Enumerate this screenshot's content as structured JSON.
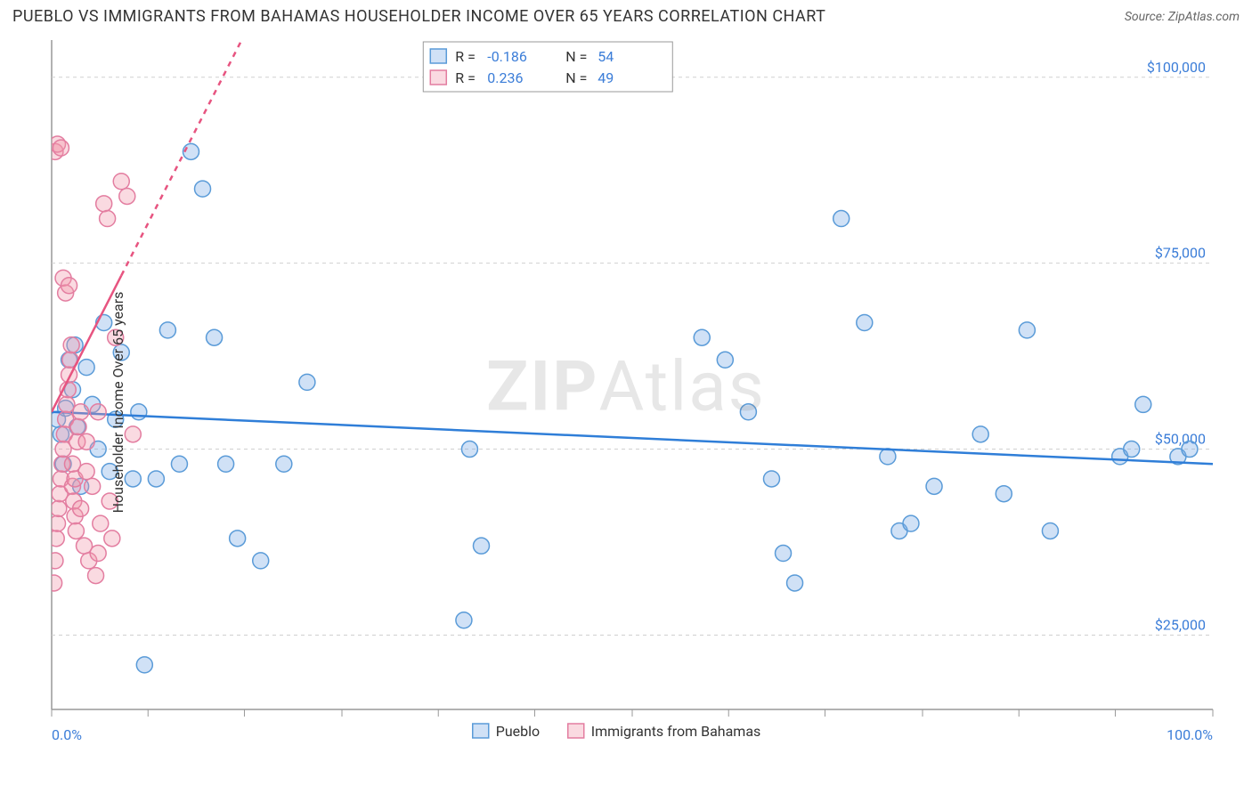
{
  "header": {
    "title": "PUEBLO VS IMMIGRANTS FROM BAHAMAS HOUSEHOLDER INCOME OVER 65 YEARS CORRELATION CHART",
    "source": "Source: ZipAtlas.com"
  },
  "watermark": {
    "part1": "ZIP",
    "part2": "Atlas"
  },
  "chart": {
    "type": "scatter",
    "ylabel": "Householder Income Over 65 years",
    "xlim": [
      0,
      100
    ],
    "ylim": [
      15000,
      105000
    ],
    "x_axis": {
      "min_label": "0.0%",
      "max_label": "100.0%",
      "label_color": "#3b7dd8",
      "tick_positions": [
        0,
        8.3,
        16.6,
        25,
        33.3,
        41.6,
        50,
        58.3,
        66.6,
        75,
        83.3,
        91.6,
        100
      ]
    },
    "y_axis": {
      "gridlines": [
        {
          "value": 25000,
          "label": "$25,000"
        },
        {
          "value": 50000,
          "label": "$50,000"
        },
        {
          "value": 75000,
          "label": "$75,000"
        },
        {
          "value": 100000,
          "label": "$100,000"
        }
      ],
      "label_color": "#3b7dd8",
      "grid_color": "#d0d0d0"
    },
    "background_color": "#ffffff",
    "border_color": "#999999",
    "marker_radius": 9,
    "marker_stroke_width": 1.5,
    "series": [
      {
        "name": "Pueblo",
        "fill": "rgba(120,170,230,0.35)",
        "stroke": "#5a9bd8",
        "R": "-0.186",
        "N": "54",
        "trend": {
          "x1": 0,
          "y1": 55000,
          "x2": 100,
          "y2": 48000,
          "color": "#2f7ed8",
          "width": 2.5,
          "dash_after_x": null
        },
        "points": [
          [
            0.5,
            54000
          ],
          [
            0.8,
            52000
          ],
          [
            1.0,
            48000
          ],
          [
            1.2,
            55500
          ],
          [
            1.5,
            62000
          ],
          [
            1.8,
            58000
          ],
          [
            2.0,
            64000
          ],
          [
            2.2,
            53000
          ],
          [
            2.5,
            45000
          ],
          [
            3.0,
            61000
          ],
          [
            3.5,
            56000
          ],
          [
            4.0,
            50000
          ],
          [
            4.5,
            67000
          ],
          [
            5.0,
            47000
          ],
          [
            5.5,
            54000
          ],
          [
            6.0,
            63000
          ],
          [
            7.0,
            46000
          ],
          [
            7.5,
            55000
          ],
          [
            8.0,
            21000
          ],
          [
            9.0,
            46000
          ],
          [
            10.0,
            66000
          ],
          [
            11.0,
            48000
          ],
          [
            12.0,
            90000
          ],
          [
            13.0,
            85000
          ],
          [
            14.0,
            65000
          ],
          [
            15.0,
            48000
          ],
          [
            16.0,
            38000
          ],
          [
            18.0,
            35000
          ],
          [
            20.0,
            48000
          ],
          [
            22.0,
            59000
          ],
          [
            35.5,
            27000
          ],
          [
            36.0,
            50000
          ],
          [
            37.0,
            37000
          ],
          [
            56.0,
            65000
          ],
          [
            58.0,
            62000
          ],
          [
            60.0,
            55000
          ],
          [
            62.0,
            46000
          ],
          [
            63.0,
            36000
          ],
          [
            64.0,
            32000
          ],
          [
            68.0,
            81000
          ],
          [
            70.0,
            67000
          ],
          [
            72.0,
            49000
          ],
          [
            73.0,
            39000
          ],
          [
            74.0,
            40000
          ],
          [
            76.0,
            45000
          ],
          [
            80.0,
            52000
          ],
          [
            82.0,
            44000
          ],
          [
            84.0,
            66000
          ],
          [
            86.0,
            39000
          ],
          [
            92.0,
            49000
          ],
          [
            93.0,
            50000
          ],
          [
            94.0,
            56000
          ],
          [
            97.0,
            49000
          ],
          [
            98.0,
            50000
          ]
        ]
      },
      {
        "name": "Immigrants from Bahamas",
        "fill": "rgba(240,150,170,0.35)",
        "stroke": "#e37da0",
        "R": "0.236",
        "N": "49",
        "trend": {
          "x1": 0,
          "y1": 55000,
          "x2": 18,
          "y2": 110000,
          "color": "#e75480",
          "width": 2.5,
          "dash_after_x": 6
        },
        "points": [
          [
            0.2,
            32000
          ],
          [
            0.3,
            35000
          ],
          [
            0.4,
            38000
          ],
          [
            0.5,
            40000
          ],
          [
            0.6,
            42000
          ],
          [
            0.7,
            44000
          ],
          [
            0.8,
            46000
          ],
          [
            0.9,
            48000
          ],
          [
            1.0,
            50000
          ],
          [
            1.1,
            52000
          ],
          [
            1.2,
            54000
          ],
          [
            1.3,
            56000
          ],
          [
            1.4,
            58000
          ],
          [
            1.5,
            60000
          ],
          [
            1.6,
            62000
          ],
          [
            1.7,
            64000
          ],
          [
            1.8,
            45000
          ],
          [
            1.9,
            43000
          ],
          [
            2.0,
            41000
          ],
          [
            2.1,
            39000
          ],
          [
            2.2,
            51000
          ],
          [
            2.3,
            53000
          ],
          [
            0.3,
            90000
          ],
          [
            0.5,
            91000
          ],
          [
            0.8,
            90500
          ],
          [
            1.0,
            73000
          ],
          [
            1.2,
            71000
          ],
          [
            1.8,
            48000
          ],
          [
            2.0,
            46000
          ],
          [
            2.5,
            42000
          ],
          [
            2.5,
            55000
          ],
          [
            3.0,
            47000
          ],
          [
            3.0,
            51000
          ],
          [
            3.5,
            45000
          ],
          [
            4.0,
            55000
          ],
          [
            4.2,
            40000
          ],
          [
            4.5,
            83000
          ],
          [
            4.8,
            81000
          ],
          [
            5.0,
            43000
          ],
          [
            5.2,
            38000
          ],
          [
            5.5,
            65000
          ],
          [
            6.0,
            86000
          ],
          [
            6.5,
            84000
          ],
          [
            7.0,
            52000
          ],
          [
            2.8,
            37000
          ],
          [
            3.2,
            35000
          ],
          [
            3.8,
            33000
          ],
          [
            4.0,
            36000
          ],
          [
            1.5,
            72000
          ]
        ]
      }
    ],
    "legend_top": {
      "box_stroke": "#999999",
      "stat_color": "#3b7dd8",
      "label_color": "#333333"
    },
    "legend_bottom": {
      "items": [
        "Pueblo",
        "Immigrants from Bahamas"
      ]
    }
  }
}
